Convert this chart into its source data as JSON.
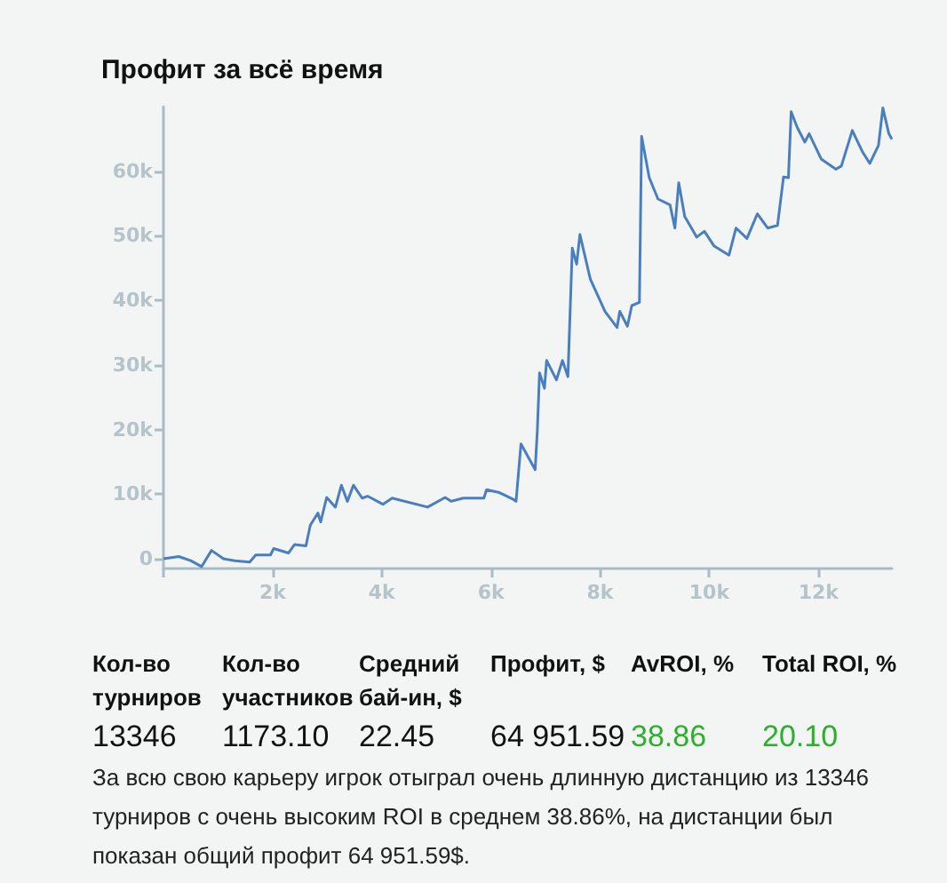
{
  "chart_data": {
    "type": "line",
    "title": "Профит за всё время",
    "color": "#4a7fbf",
    "x": [
      0,
      0.28,
      0.5,
      0.7,
      0.88,
      1.1,
      1.31,
      1.58,
      1.69,
      1.96,
      2.02,
      2.29,
      2.4,
      2.61,
      2.69,
      2.83,
      2.88,
      2.99,
      3.15,
      3.26,
      3.37,
      3.48,
      3.64,
      3.74,
      4.02,
      4.19,
      4.84,
      5.16,
      5.27,
      5.49,
      5.87,
      5.92,
      6.14,
      6.41,
      6.46,
      6.55,
      6.81,
      6.85,
      6.89,
      6.98,
      7.02,
      7.2,
      7.31,
      7.41,
      7.49,
      7.57,
      7.63,
      7.82,
      8.09,
      8.31,
      8.36,
      8.5,
      8.58,
      8.72,
      8.76,
      8.9,
      9.06,
      9.28,
      9.37,
      9.44,
      9.55,
      9.77,
      9.91,
      10.09,
      10.36,
      10.49,
      10.69,
      10.88,
      11.07,
      11.25,
      11.36,
      11.45,
      11.5,
      11.61,
      11.75,
      11.83,
      12.05,
      12.32,
      12.42,
      12.62,
      12.8,
      12.94,
      13.1,
      13.18,
      13.29,
      13.346
    ],
    "values": [
      0,
      350,
      -275,
      -1200,
      1300,
      0,
      -300,
      -500,
      600,
      600,
      1600,
      900,
      2200,
      2000,
      5200,
      7100,
      5700,
      9500,
      8000,
      11400,
      8900,
      11400,
      9400,
      9700,
      8450,
      9400,
      8000,
      9500,
      8900,
      9400,
      9400,
      10700,
      10300,
      9200,
      8900,
      17800,
      13800,
      19900,
      28800,
      26400,
      30700,
      27700,
      30700,
      28200,
      48100,
      45600,
      50200,
      43300,
      38300,
      35800,
      38300,
      36000,
      39200,
      39700,
      65400,
      59000,
      55700,
      54800,
      51200,
      58200,
      53000,
      49800,
      50700,
      48400,
      47000,
      51200,
      49600,
      53400,
      51200,
      51600,
      59100,
      59000,
      69200,
      66800,
      64500,
      65800,
      61900,
      60300,
      60800,
      66300,
      63100,
      61200,
      64000,
      69800,
      65800,
      64950
    ],
    "xlim": [
      0,
      13.346
    ],
    "ylim": [
      -1500,
      70000
    ],
    "xticks": [
      {
        "value": 0,
        "label": null
      },
      {
        "value": 2,
        "label": "2k"
      },
      {
        "value": 4,
        "label": "4k"
      },
      {
        "value": 6,
        "label": "6k"
      },
      {
        "value": 8,
        "label": "8k"
      },
      {
        "value": 10,
        "label": "10k"
      },
      {
        "value": 12,
        "label": "12k"
      }
    ],
    "yticks": [
      0,
      {
        "value": 10000,
        "label": "10k"
      },
      {
        "value": 20000,
        "label": "20k"
      },
      {
        "value": 30000,
        "label": "30k"
      },
      {
        "value": 40000,
        "label": "40k"
      },
      {
        "value": 50000,
        "label": "50k"
      },
      {
        "value": 60000,
        "label": "60k"
      }
    ],
    "grid": false,
    "marker": "none",
    "line_style": "solid",
    "annotations": [
      "Кол-во турниров",
      "Кол-во участников",
      "Средний бай-ин, $",
      "Профит, $",
      "AvROI, %",
      "Total ROI, %",
      "13346",
      "1173.10",
      "22.45",
      "64 951.59",
      "38.86",
      "20.10",
      "За всю свою карьеру игрок отыграл очень длинную дистанцию из 13346 турниров с очень высоким ROI в среднем 38.86%, на дистанции был показан общий профит 64 951.59$."
    ]
  }
}
